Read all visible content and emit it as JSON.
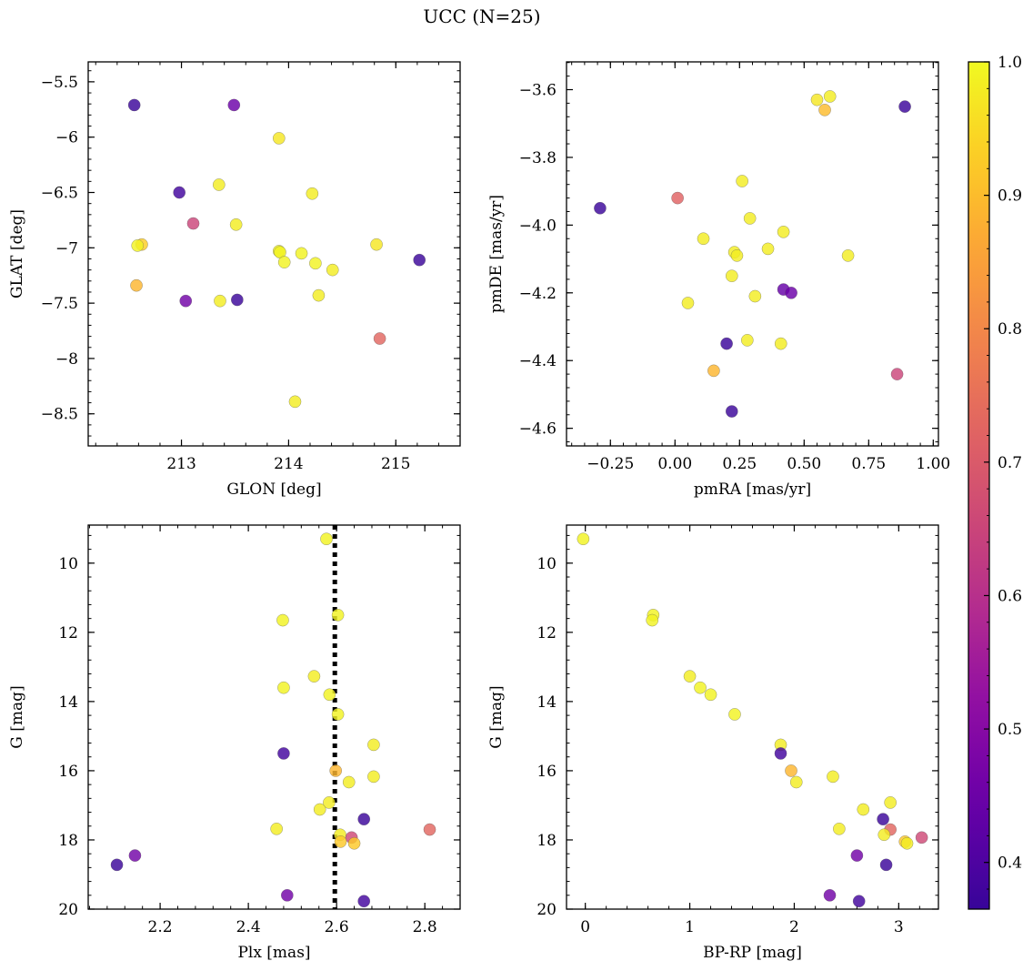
{
  "title": "UCC (N=25)",
  "chart_data": [
    {
      "type": "scatter",
      "xlabel": "GLON [deg]",
      "ylabel": "GLAT [deg]",
      "xlim": [
        212.13,
        215.6
      ],
      "ylim": [
        -8.79,
        -5.32
      ],
      "y_inverted": false,
      "xticks": [
        213,
        214,
        215
      ],
      "yticks": [
        -5.5,
        -6.0,
        -6.5,
        -7.0,
        -7.5,
        -8.0,
        -8.5
      ],
      "points": [
        {
          "x": 212.56,
          "y": -5.71,
          "c": 0.37
        },
        {
          "x": 213.49,
          "y": -5.71,
          "c": 0.45
        },
        {
          "x": 213.91,
          "y": -6.01,
          "c": 0.97
        },
        {
          "x": 212.98,
          "y": -6.5,
          "c": 0.38
        },
        {
          "x": 213.35,
          "y": -6.43,
          "c": 0.98
        },
        {
          "x": 214.22,
          "y": -6.51,
          "c": 0.98
        },
        {
          "x": 213.11,
          "y": -6.78,
          "c": 0.65
        },
        {
          "x": 213.51,
          "y": -6.79,
          "c": 0.98
        },
        {
          "x": 212.63,
          "y": -6.97,
          "c": 0.93
        },
        {
          "x": 212.59,
          "y": -6.98,
          "c": 0.99
        },
        {
          "x": 213.91,
          "y": -7.03,
          "c": 0.99
        },
        {
          "x": 213.92,
          "y": -7.04,
          "c": 0.99
        },
        {
          "x": 213.96,
          "y": -7.13,
          "c": 0.99
        },
        {
          "x": 214.12,
          "y": -7.05,
          "c": 0.99
        },
        {
          "x": 214.25,
          "y": -7.14,
          "c": 0.99
        },
        {
          "x": 214.41,
          "y": -7.2,
          "c": 0.98
        },
        {
          "x": 214.82,
          "y": -6.97,
          "c": 0.97
        },
        {
          "x": 215.22,
          "y": -7.11,
          "c": 0.37
        },
        {
          "x": 212.58,
          "y": -7.34,
          "c": 0.89
        },
        {
          "x": 213.04,
          "y": -7.48,
          "c": 0.46
        },
        {
          "x": 213.36,
          "y": -7.48,
          "c": 0.98
        },
        {
          "x": 213.52,
          "y": -7.47,
          "c": 0.37
        },
        {
          "x": 214.28,
          "y": -7.43,
          "c": 0.98
        },
        {
          "x": 214.85,
          "y": -7.82,
          "c": 0.73
        },
        {
          "x": 214.06,
          "y": -8.39,
          "c": 0.98
        }
      ]
    },
    {
      "type": "scatter",
      "xlabel": "pmRA [mas/yr]",
      "ylabel": "pmDE [mas/yr]",
      "xlim": [
        -0.42,
        1.02
      ],
      "ylim": [
        -4.652,
        -3.518
      ],
      "y_inverted": false,
      "xticks": [
        -0.25,
        0.0,
        0.25,
        0.5,
        0.75,
        1.0
      ],
      "xticklabels": [
        "−0.25",
        "0.00",
        "0.25",
        "0.50",
        "0.75",
        "1.00"
      ],
      "yticks": [
        -3.6,
        -3.8,
        -4.0,
        -4.2,
        -4.4,
        -4.6
      ],
      "yticklabels": [
        "−3.6",
        "−3.8",
        "−4.0",
        "−4.2",
        "−4.4",
        "−4.6"
      ],
      "points": [
        {
          "x": 0.55,
          "y": -3.63,
          "c": 0.97
        },
        {
          "x": 0.6,
          "y": -3.62,
          "c": 0.98
        },
        {
          "x": 0.58,
          "y": -3.66,
          "c": 0.9
        },
        {
          "x": 0.89,
          "y": -3.65,
          "c": 0.37
        },
        {
          "x": -0.29,
          "y": -3.95,
          "c": 0.37
        },
        {
          "x": 0.26,
          "y": -3.87,
          "c": 0.98
        },
        {
          "x": 0.01,
          "y": -3.92,
          "c": 0.72
        },
        {
          "x": 0.29,
          "y": -3.98,
          "c": 0.98
        },
        {
          "x": 0.11,
          "y": -4.04,
          "c": 0.98
        },
        {
          "x": 0.42,
          "y": -4.02,
          "c": 0.98
        },
        {
          "x": 0.23,
          "y": -4.08,
          "c": 0.98
        },
        {
          "x": 0.24,
          "y": -4.09,
          "c": 0.98
        },
        {
          "x": 0.36,
          "y": -4.07,
          "c": 0.98
        },
        {
          "x": 0.67,
          "y": -4.09,
          "c": 0.98
        },
        {
          "x": 0.22,
          "y": -4.15,
          "c": 0.98
        },
        {
          "x": 0.31,
          "y": -4.21,
          "c": 0.98
        },
        {
          "x": 0.42,
          "y": -4.19,
          "c": 0.44
        },
        {
          "x": 0.45,
          "y": -4.2,
          "c": 0.45
        },
        {
          "x": 0.05,
          "y": -4.23,
          "c": 0.98
        },
        {
          "x": 0.2,
          "y": -4.35,
          "c": 0.37
        },
        {
          "x": 0.28,
          "y": -4.34,
          "c": 0.98
        },
        {
          "x": 0.41,
          "y": -4.35,
          "c": 0.98
        },
        {
          "x": 0.15,
          "y": -4.43,
          "c": 0.89
        },
        {
          "x": 0.86,
          "y": -4.44,
          "c": 0.65
        },
        {
          "x": 0.22,
          "y": -4.55,
          "c": 0.37
        }
      ]
    },
    {
      "type": "scatter",
      "xlabel": "Plx [mas]",
      "ylabel": "G [mag]",
      "xlim": [
        2.037,
        2.88
      ],
      "ylim": [
        8.9,
        20.0
      ],
      "y_inverted": true,
      "xticks": [
        2.2,
        2.4,
        2.6,
        2.8
      ],
      "xticklabels": [
        "2.2",
        "2.4",
        "2.6",
        "2.8"
      ],
      "yticks": [
        10,
        12,
        14,
        16,
        18,
        20
      ],
      "vline": 2.596,
      "points": [
        {
          "x": 2.577,
          "y": 9.3,
          "c": 0.99
        },
        {
          "x": 2.478,
          "y": 11.65,
          "c": 0.99
        },
        {
          "x": 2.603,
          "y": 11.5,
          "c": 0.99
        },
        {
          "x": 2.549,
          "y": 13.27,
          "c": 0.98
        },
        {
          "x": 2.48,
          "y": 13.6,
          "c": 0.99
        },
        {
          "x": 2.584,
          "y": 13.8,
          "c": 0.99
        },
        {
          "x": 2.603,
          "y": 14.37,
          "c": 0.99
        },
        {
          "x": 2.684,
          "y": 15.25,
          "c": 0.98
        },
        {
          "x": 2.48,
          "y": 15.5,
          "c": 0.38
        },
        {
          "x": 2.598,
          "y": 16.0,
          "c": 0.89
        },
        {
          "x": 2.684,
          "y": 16.17,
          "c": 0.98
        },
        {
          "x": 2.628,
          "y": 16.33,
          "c": 0.98
        },
        {
          "x": 2.583,
          "y": 16.92,
          "c": 0.98
        },
        {
          "x": 2.562,
          "y": 17.12,
          "c": 0.98
        },
        {
          "x": 2.662,
          "y": 17.4,
          "c": 0.37
        },
        {
          "x": 2.464,
          "y": 17.68,
          "c": 0.98
        },
        {
          "x": 2.811,
          "y": 17.7,
          "c": 0.73
        },
        {
          "x": 2.608,
          "y": 17.85,
          "c": 0.98
        },
        {
          "x": 2.634,
          "y": 17.93,
          "c": 0.66
        },
        {
          "x": 2.609,
          "y": 18.05,
          "c": 0.92
        },
        {
          "x": 2.64,
          "y": 18.1,
          "c": 0.92
        },
        {
          "x": 2.143,
          "y": 18.45,
          "c": 0.46
        },
        {
          "x": 2.102,
          "y": 18.72,
          "c": 0.37
        },
        {
          "x": 2.488,
          "y": 19.6,
          "c": 0.46
        },
        {
          "x": 2.662,
          "y": 19.77,
          "c": 0.38
        }
      ]
    },
    {
      "type": "scatter",
      "xlabel": "BP-RP [mag]",
      "ylabel": "G [mag]",
      "xlim": [
        -0.18,
        3.38
      ],
      "ylim": [
        8.9,
        20.0
      ],
      "y_inverted": true,
      "xticks": [
        0,
        1,
        2,
        3
      ],
      "xticklabels": [
        "0",
        "1",
        "2",
        "3"
      ],
      "yticks": [
        10,
        12,
        14,
        16,
        18,
        20
      ],
      "points": [
        {
          "x": -0.02,
          "y": 9.3,
          "c": 0.99
        },
        {
          "x": 0.65,
          "y": 11.5,
          "c": 0.99
        },
        {
          "x": 0.64,
          "y": 11.65,
          "c": 0.99
        },
        {
          "x": 1.0,
          "y": 13.27,
          "c": 0.98
        },
        {
          "x": 1.1,
          "y": 13.6,
          "c": 0.99
        },
        {
          "x": 1.2,
          "y": 13.8,
          "c": 0.99
        },
        {
          "x": 1.43,
          "y": 14.37,
          "c": 0.99
        },
        {
          "x": 1.87,
          "y": 15.25,
          "c": 0.98
        },
        {
          "x": 1.87,
          "y": 15.5,
          "c": 0.38
        },
        {
          "x": 1.97,
          "y": 16.0,
          "c": 0.89
        },
        {
          "x": 2.02,
          "y": 16.33,
          "c": 0.98
        },
        {
          "x": 2.37,
          "y": 16.17,
          "c": 0.98
        },
        {
          "x": 2.92,
          "y": 16.92,
          "c": 0.98
        },
        {
          "x": 2.66,
          "y": 17.12,
          "c": 0.98
        },
        {
          "x": 2.85,
          "y": 17.4,
          "c": 0.37
        },
        {
          "x": 2.43,
          "y": 17.68,
          "c": 0.98
        },
        {
          "x": 2.92,
          "y": 17.7,
          "c": 0.73
        },
        {
          "x": 2.86,
          "y": 17.85,
          "c": 0.98
        },
        {
          "x": 3.22,
          "y": 17.93,
          "c": 0.66
        },
        {
          "x": 3.06,
          "y": 18.05,
          "c": 0.92
        },
        {
          "x": 3.08,
          "y": 18.1,
          "c": 0.98
        },
        {
          "x": 2.6,
          "y": 18.45,
          "c": 0.46
        },
        {
          "x": 2.88,
          "y": 18.72,
          "c": 0.37
        },
        {
          "x": 2.34,
          "y": 19.6,
          "c": 0.46
        },
        {
          "x": 2.62,
          "y": 19.77,
          "c": 0.38
        }
      ]
    }
  ],
  "colorbar": {
    "cmap": "plasma",
    "min": 0.365,
    "max": 1.0,
    "ticks": [
      0.4,
      0.5,
      0.6,
      0.7,
      0.8,
      0.9,
      1.0
    ],
    "ticklabels": [
      "0.4",
      "0.5",
      "0.6",
      "0.7",
      "0.8",
      "0.9",
      "1.0"
    ]
  }
}
